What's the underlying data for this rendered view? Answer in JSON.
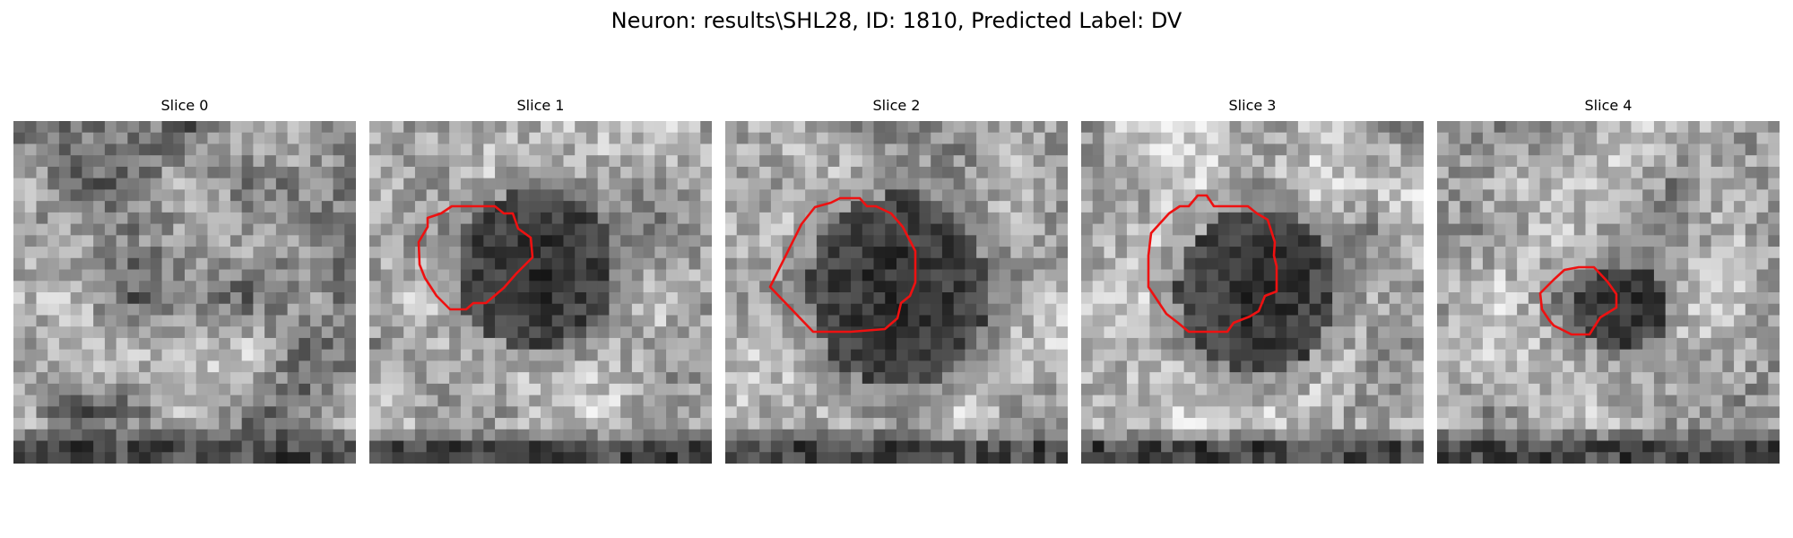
{
  "figure": {
    "title": "Neuron: results\\SHL28, ID: 1810, Predicted Label: DV"
  },
  "colors": {
    "contour": "#ee1111",
    "background": "#ffffff",
    "colormap": "grayscale"
  },
  "slices": [
    {
      "title": "Slice 0",
      "has_contour": false,
      "seed": 11
    },
    {
      "title": "Slice 1",
      "has_contour": true,
      "seed": 23
    },
    {
      "title": "Slice 2",
      "has_contour": true,
      "seed": 37
    },
    {
      "title": "Slice 3",
      "has_contour": true,
      "seed": 41
    },
    {
      "title": "Slice 4",
      "has_contour": true,
      "seed": 53
    }
  ]
}
